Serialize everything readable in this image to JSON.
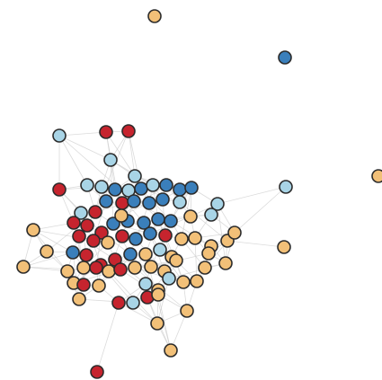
{
  "graph": {
    "type": "force-directed network",
    "colors": {
      "orange": "#f2c078",
      "red": "#c6242e",
      "blue": "#3a7fbb",
      "lightblue": "#a8d4e6",
      "edge": "#cfcfcf",
      "outline": "#2b2b2b"
    }
  }
}
